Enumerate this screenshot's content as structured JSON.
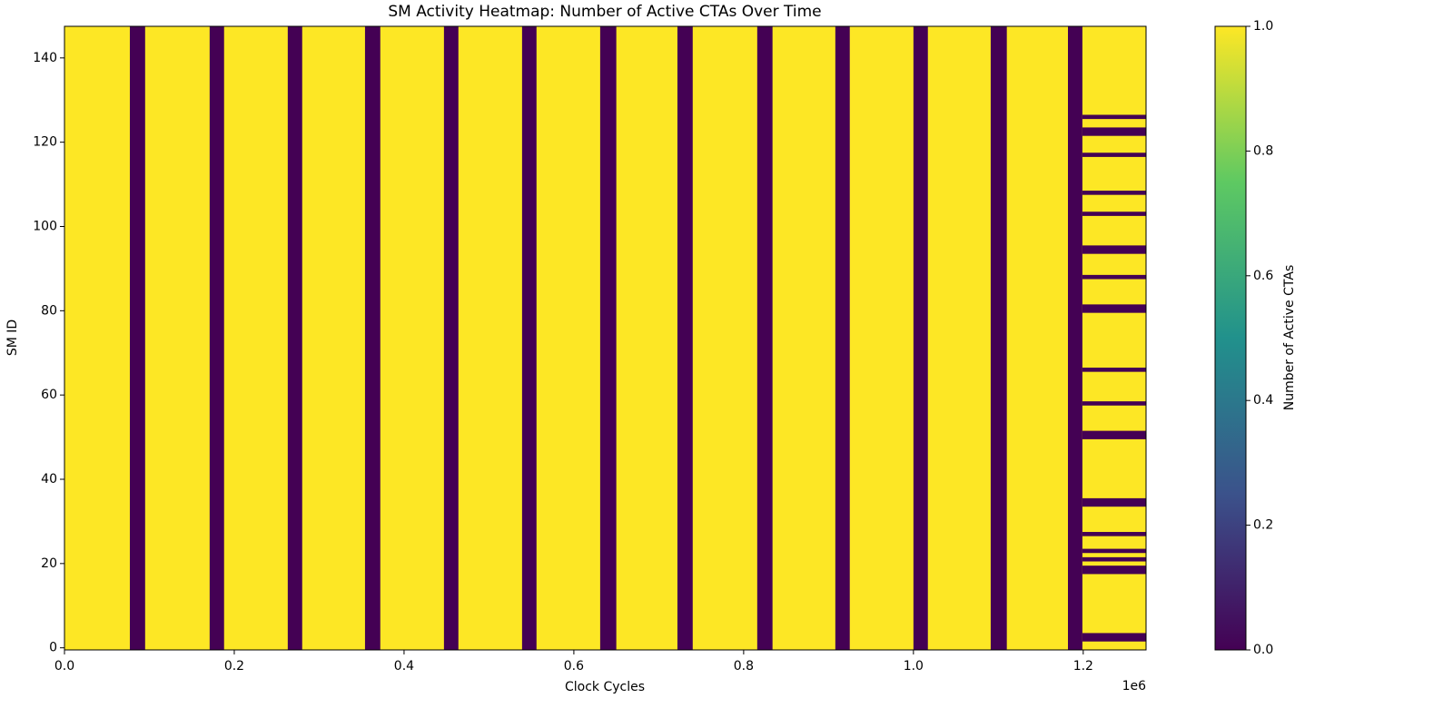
{
  "chart_data": {
    "type": "heatmap",
    "title": "SM Activity Heatmap: Number of Active CTAs Over Time",
    "x_label": "Clock Cycles",
    "x_offset_label": "1e6",
    "y_label": "SM ID",
    "colorbar_label": "Number of Active CTAs",
    "colormap": [
      "#440154",
      "#3b528b",
      "#21918c",
      "#5ec962",
      "#fde725"
    ],
    "zlim": [
      0,
      1
    ],
    "zticks": [
      {
        "value": 0,
        "label": "0.0"
      },
      {
        "value": 0.2,
        "label": "0.2"
      },
      {
        "value": 0.4,
        "label": "0.4"
      },
      {
        "value": 0.6,
        "label": "0.6"
      },
      {
        "value": 0.8,
        "label": "0.8"
      },
      {
        "value": 1,
        "label": "1.0"
      }
    ],
    "xlim": [
      0,
      1274000
    ],
    "xticks": [
      {
        "value": 0,
        "label": "0.0"
      },
      {
        "value": 200000,
        "label": "0.2"
      },
      {
        "value": 400000,
        "label": "0.4"
      },
      {
        "value": 600000,
        "label": "0.6"
      },
      {
        "value": 800000,
        "label": "0.8"
      },
      {
        "value": 1000000,
        "label": "1.0"
      },
      {
        "value": 1200000,
        "label": "1.2"
      }
    ],
    "ylim": [
      -0.5,
      147.5
    ],
    "yticks": [
      0,
      20,
      40,
      60,
      80,
      100,
      120,
      140
    ],
    "background_value": 1,
    "idle_bands": [
      {
        "x": [
          77000,
          95000
        ],
        "value": 0
      },
      {
        "x": [
          171000,
          188000
        ],
        "value": 0
      },
      {
        "x": [
          263000,
          280000
        ],
        "value": 0
      },
      {
        "x": [
          354000,
          372000
        ],
        "value": 0
      },
      {
        "x": [
          447000,
          464000
        ],
        "value": 0
      },
      {
        "x": [
          539000,
          556000
        ],
        "value": 0
      },
      {
        "x": [
          631000,
          650000
        ],
        "value": 0
      },
      {
        "x": [
          722000,
          740000
        ],
        "value": 0
      },
      {
        "x": [
          816000,
          834000
        ],
        "value": 0
      },
      {
        "x": [
          908000,
          925000
        ],
        "value": 0
      },
      {
        "x": [
          1000000,
          1017000
        ],
        "value": 0
      },
      {
        "x": [
          1091000,
          1110000
        ],
        "value": 0
      },
      {
        "x": [
          1182000,
          1199000
        ],
        "value": 0
      }
    ],
    "idle_stripes": [
      {
        "x": [
          1199000,
          1274000
        ],
        "y": [
          125.5,
          126.5
        ],
        "value": 0
      },
      {
        "x": [
          1199000,
          1274000
        ],
        "y": [
          121.5,
          123.5
        ],
        "value": 0
      },
      {
        "x": [
          1199000,
          1274000
        ],
        "y": [
          116.5,
          117.5
        ],
        "value": 0
      },
      {
        "x": [
          1199000,
          1274000
        ],
        "y": [
          107.5,
          108.5
        ],
        "value": 0
      },
      {
        "x": [
          1199000,
          1274000
        ],
        "y": [
          102.5,
          103.5
        ],
        "value": 0
      },
      {
        "x": [
          1199000,
          1274000
        ],
        "y": [
          93.5,
          95.5
        ],
        "value": 0
      },
      {
        "x": [
          1199000,
          1274000
        ],
        "y": [
          87.5,
          88.5
        ],
        "value": 0
      },
      {
        "x": [
          1199000,
          1274000
        ],
        "y": [
          79.5,
          81.5
        ],
        "value": 0
      },
      {
        "x": [
          1199000,
          1274000
        ],
        "y": [
          65.5,
          66.5
        ],
        "value": 0
      },
      {
        "x": [
          1199000,
          1274000
        ],
        "y": [
          57.5,
          58.5
        ],
        "value": 0
      },
      {
        "x": [
          1199000,
          1274000
        ],
        "y": [
          49.5,
          51.5
        ],
        "value": 0
      },
      {
        "x": [
          1199000,
          1274000
        ],
        "y": [
          33.5,
          35.5
        ],
        "value": 0
      },
      {
        "x": [
          1199000,
          1274000
        ],
        "y": [
          26.5,
          27.5
        ],
        "value": 0
      },
      {
        "x": [
          1199000,
          1274000
        ],
        "y": [
          22.5,
          23.5
        ],
        "value": 0
      },
      {
        "x": [
          1199000,
          1274000
        ],
        "y": [
          20.5,
          21.5
        ],
        "value": 0
      },
      {
        "x": [
          1199000,
          1274000
        ],
        "y": [
          17.5,
          19.5
        ],
        "value": 0
      },
      {
        "x": [
          1199000,
          1274000
        ],
        "y": [
          1.5,
          3.5
        ],
        "value": 0
      }
    ]
  }
}
